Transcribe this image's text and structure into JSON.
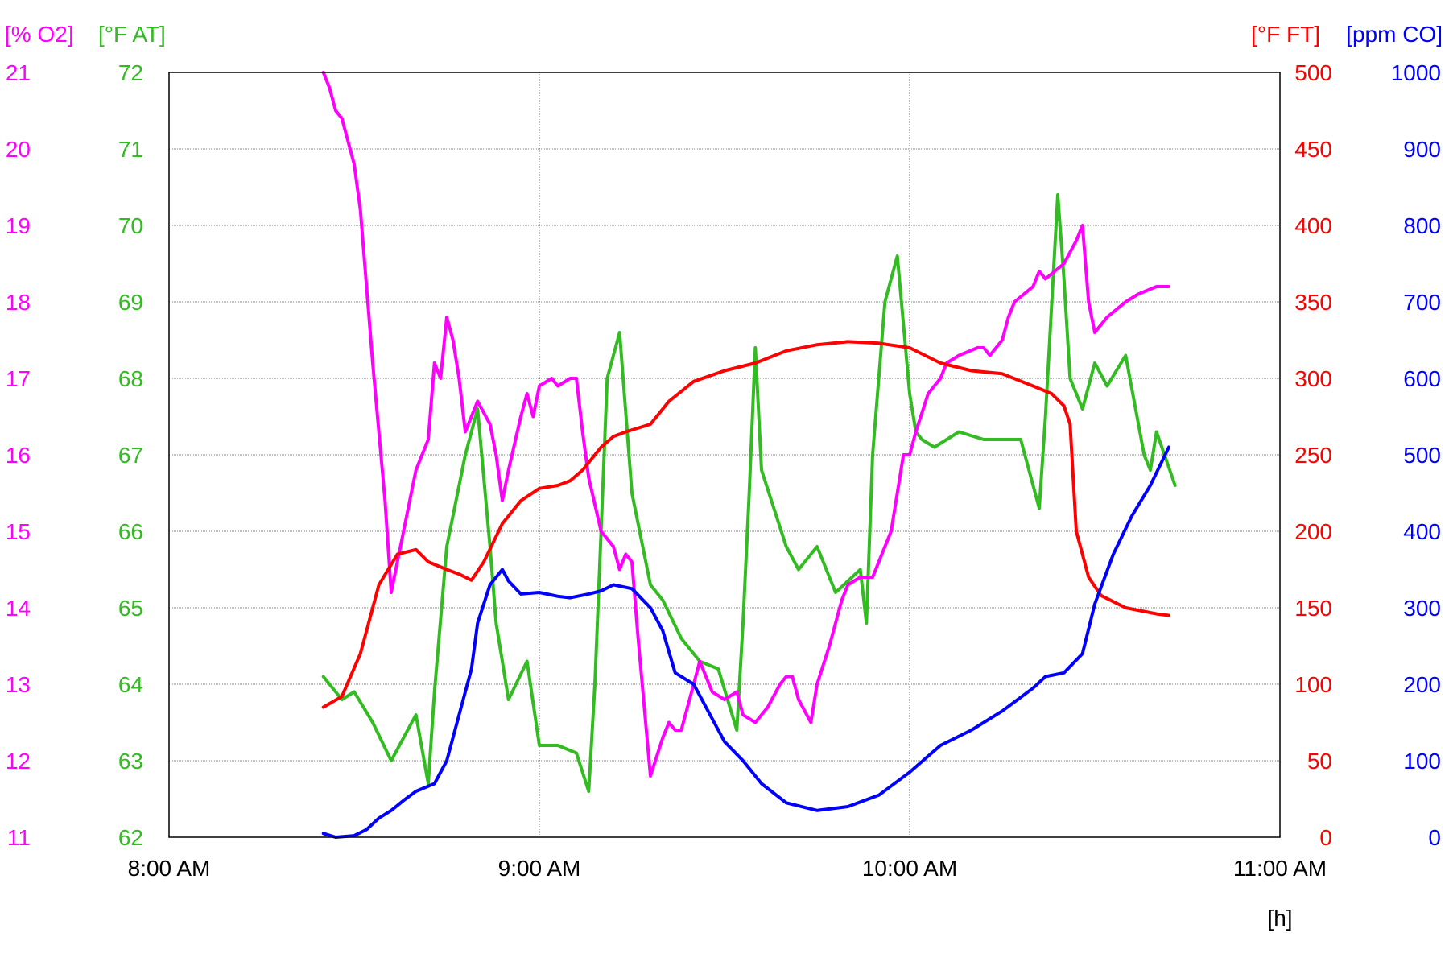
{
  "chart_data": {
    "type": "line",
    "xlabel": "[h]",
    "x_range": [
      "8:00 AM",
      "11:00 AM"
    ],
    "x_ticks": [
      "8:00 AM",
      "9:00 AM",
      "10:00 AM",
      "11:00 AM"
    ],
    "grid": true,
    "axes": [
      {
        "id": "o2",
        "label": "[% O2]",
        "color": "#ff00ff",
        "side": "left",
        "range": [
          11,
          21
        ],
        "ticks": [
          "11",
          "12",
          "13",
          "14",
          "15",
          "16",
          "17",
          "18",
          "19",
          "20",
          "21"
        ]
      },
      {
        "id": "at",
        "label": "[°F AT]",
        "color": "#33bb22",
        "side": "left",
        "range": [
          62,
          72
        ],
        "ticks": [
          "62",
          "63",
          "64",
          "65",
          "66",
          "67",
          "68",
          "69",
          "70",
          "71",
          "72"
        ]
      },
      {
        "id": "ft",
        "label": "[°F FT]",
        "color": "#ff0000",
        "side": "right",
        "range": [
          0,
          500
        ],
        "ticks": [
          "0",
          "50",
          "100",
          "150",
          "200",
          "250",
          "300",
          "350",
          "400",
          "450",
          "500"
        ]
      },
      {
        "id": "co",
        "label": "[ppm CO]",
        "color": "#0000ff",
        "side": "right",
        "range": [
          0,
          1000
        ],
        "ticks": [
          "0",
          "100",
          "200",
          "300",
          "400",
          "500",
          "600",
          "700",
          "800",
          "900",
          "1000"
        ]
      }
    ],
    "series": [
      {
        "axis": "at",
        "color": "#33bb22",
        "x": [
          "8:25 AM",
          "8:28 AM",
          "8:30 AM",
          "8:33 AM",
          "8:36 AM",
          "8:38 AM",
          "8:40 AM",
          "8:42 AM",
          "8:43 AM",
          "8:45 AM",
          "8:48 AM",
          "8:50 AM",
          "8:52 AM",
          "8:53 AM",
          "8:55 AM",
          "8:58 AM",
          "9:00 AM",
          "9:03 AM",
          "9:06 AM",
          "9:08 AM",
          "9:09 AM",
          "9:10 AM",
          "9:11 AM",
          "9:13 AM",
          "9:15 AM",
          "9:18 AM",
          "9:20 AM",
          "9:23 AM",
          "9:26 AM",
          "9:29 AM",
          "9:32 AM",
          "9:33 AM",
          "9:34 AM",
          "9:35 AM",
          "9:36 AM",
          "9:40 AM",
          "9:42 AM",
          "9:45 AM",
          "9:48 AM",
          "9:52 AM",
          "9:53 AM",
          "9:54 AM",
          "9:56 AM",
          "9:58 AM",
          "10:00 AM",
          "10:01 AM",
          "10:02 AM",
          "10:04 AM",
          "10:08 AM",
          "10:12 AM",
          "10:18 AM",
          "10:21 AM",
          "10:22 AM",
          "10:24 AM",
          "10:25 AM",
          "10:26 AM",
          "10:28 AM",
          "10:30 AM",
          "10:32 AM",
          "10:35 AM",
          "10:38 AM",
          "10:39 AM",
          "10:40 AM",
          "10:43 AM"
        ],
        "y": [
          64.1,
          63.8,
          63.9,
          63.5,
          63.0,
          63.3,
          63.6,
          62.7,
          63.9,
          65.8,
          67.0,
          67.6,
          65.8,
          64.8,
          63.8,
          64.3,
          63.2,
          63.2,
          63.1,
          62.6,
          64.0,
          66.0,
          68.0,
          68.6,
          66.5,
          65.3,
          65.1,
          64.6,
          64.3,
          64.2,
          63.4,
          64.8,
          66.5,
          68.4,
          66.8,
          65.8,
          65.5,
          65.8,
          65.2,
          65.5,
          64.8,
          67.0,
          69.0,
          69.6,
          67.8,
          67.3,
          67.2,
          67.1,
          67.3,
          67.2,
          67.2,
          66.3,
          67.5,
          70.4,
          69.3,
          68.0,
          67.6,
          68.2,
          67.9,
          68.3,
          67.0,
          66.8,
          67.3,
          66.6
        ]
      },
      {
        "axis": "o2",
        "color": "#ff00ff",
        "x": [
          "8:25 AM",
          "8:26 AM",
          "8:27 AM",
          "8:28 AM",
          "8:30 AM",
          "8:31 AM",
          "8:33 AM",
          "8:35 AM",
          "8:36 AM",
          "8:38 AM",
          "8:40 AM",
          "8:42 AM",
          "8:43 AM",
          "8:44 AM",
          "8:45 AM",
          "8:46 AM",
          "8:47 AM",
          "8:48 AM",
          "8:50 AM",
          "8:52 AM",
          "8:53 AM",
          "8:54 AM",
          "8:55 AM",
          "8:57 AM",
          "8:58 AM",
          "8:59 AM",
          "9:00 AM",
          "9:02 AM",
          "9:03 AM",
          "9:05 AM",
          "9:06 AM",
          "9:07 AM",
          "9:08 AM",
          "9:10 AM",
          "9:12 AM",
          "9:13 AM",
          "9:14 AM",
          "9:15 AM",
          "9:16 AM",
          "9:18 AM",
          "9:20 AM",
          "9:21 AM",
          "9:22 AM",
          "9:23 AM",
          "9:25 AM",
          "9:26 AM",
          "9:28 AM",
          "9:30 AM",
          "9:32 AM",
          "9:33 AM",
          "9:35 AM",
          "9:37 AM",
          "9:39 AM",
          "9:40 AM",
          "9:41 AM",
          "9:42 AM",
          "9:44 AM",
          "9:45 AM",
          "9:47 AM",
          "9:49 AM",
          "9:50 AM",
          "9:52 AM",
          "9:54 AM",
          "9:55 AM",
          "9:57 AM",
          "9:58 AM",
          "9:59 AM",
          "10:00 AM",
          "10:01 AM",
          "10:03 AM",
          "10:05 AM",
          "10:06 AM",
          "10:08 AM",
          "10:11 AM",
          "10:12 AM",
          "10:13 AM",
          "10:15 AM",
          "10:16 AM",
          "10:17 AM",
          "10:20 AM",
          "10:21 AM",
          "10:22 AM",
          "10:25 AM",
          "10:27 AM",
          "10:28 AM",
          "10:29 AM",
          "10:30 AM",
          "10:32 AM",
          "10:35 AM",
          "10:37 AM",
          "10:40 AM",
          "10:42 AM"
        ],
        "y": [
          21.0,
          20.8,
          20.5,
          20.4,
          19.8,
          19.2,
          17.2,
          15.4,
          14.2,
          15.0,
          15.8,
          16.2,
          17.2,
          17.0,
          17.8,
          17.5,
          17.0,
          16.3,
          16.7,
          16.4,
          16.0,
          15.4,
          15.8,
          16.5,
          16.8,
          16.5,
          16.9,
          17.0,
          16.9,
          17.0,
          17.0,
          16.3,
          15.7,
          15.0,
          14.8,
          14.5,
          14.7,
          14.6,
          13.6,
          11.8,
          12.3,
          12.5,
          12.4,
          12.4,
          13.0,
          13.3,
          12.9,
          12.8,
          12.9,
          12.6,
          12.5,
          12.7,
          13.0,
          13.1,
          13.1,
          12.8,
          12.5,
          13.0,
          13.5,
          14.1,
          14.3,
          14.4,
          14.4,
          14.6,
          15.0,
          15.5,
          16.0,
          16.0,
          16.3,
          16.8,
          17.0,
          17.2,
          17.3,
          17.4,
          17.4,
          17.3,
          17.5,
          17.8,
          18.0,
          18.2,
          18.4,
          18.3,
          18.5,
          18.8,
          19.0,
          18.0,
          17.6,
          17.8,
          18.0,
          18.1,
          18.2,
          18.2
        ]
      },
      {
        "axis": "ft",
        "color": "#ff0000",
        "x": [
          "8:25 AM",
          "8:28 AM",
          "8:31 AM",
          "8:34 AM",
          "8:37 AM",
          "8:40 AM",
          "8:42 AM",
          "8:45 AM",
          "8:47 AM",
          "8:49 AM",
          "8:51 AM",
          "8:54 AM",
          "8:57 AM",
          "9:00 AM",
          "9:03 AM",
          "9:05 AM",
          "9:07 AM",
          "9:10 AM",
          "9:12 AM",
          "9:14 AM",
          "9:18 AM",
          "9:21 AM",
          "9:25 AM",
          "9:30 AM",
          "9:35 AM",
          "9:40 AM",
          "9:45 AM",
          "9:50 AM",
          "9:55 AM",
          "10:00 AM",
          "10:05 AM",
          "10:10 AM",
          "10:15 AM",
          "10:20 AM",
          "10:23 AM",
          "10:25 AM",
          "10:26 AM",
          "10:27 AM",
          "10:29 AM",
          "10:31 AM",
          "10:35 AM",
          "10:40 AM",
          "10:42 AM"
        ],
        "y": [
          85,
          92,
          120,
          165,
          185,
          188,
          180,
          175,
          172,
          168,
          180,
          205,
          220,
          228,
          230,
          233,
          240,
          255,
          262,
          265,
          270,
          285,
          298,
          305,
          310,
          318,
          322,
          324,
          323,
          320,
          310,
          305,
          303,
          295,
          290,
          282,
          270,
          200,
          170,
          158,
          150,
          146,
          145
        ]
      },
      {
        "axis": "co",
        "color": "#0000ff",
        "x": [
          "8:25 AM",
          "8:27 AM",
          "8:30 AM",
          "8:32 AM",
          "8:34 AM",
          "8:36 AM",
          "8:38 AM",
          "8:40 AM",
          "8:43 AM",
          "8:45 AM",
          "8:47 AM",
          "8:49 AM",
          "8:50 AM",
          "8:52 AM",
          "8:54 AM",
          "8:55 AM",
          "8:57 AM",
          "9:00 AM",
          "9:03 AM",
          "9:05 AM",
          "9:08 AM",
          "9:10 AM",
          "9:12 AM",
          "9:15 AM",
          "9:18 AM",
          "9:20 AM",
          "9:22 AM",
          "9:25 AM",
          "9:30 AM",
          "9:33 AM",
          "9:36 AM",
          "9:40 AM",
          "9:45 AM",
          "9:50 AM",
          "9:55 AM",
          "10:00 AM",
          "10:05 AM",
          "10:10 AM",
          "10:15 AM",
          "10:20 AM",
          "10:22 AM",
          "10:25 AM",
          "10:28 AM",
          "10:30 AM",
          "10:33 AM",
          "10:36 AM",
          "10:39 AM",
          "10:42 AM"
        ],
        "y": [
          5,
          0,
          2,
          10,
          25,
          35,
          48,
          60,
          70,
          100,
          160,
          220,
          280,
          330,
          350,
          335,
          318,
          320,
          315,
          313,
          318,
          322,
          330,
          325,
          300,
          270,
          215,
          200,
          125,
          100,
          70,
          45,
          35,
          40,
          55,
          85,
          120,
          140,
          165,
          195,
          210,
          215,
          240,
          305,
          370,
          420,
          460,
          510
        ]
      }
    ]
  }
}
